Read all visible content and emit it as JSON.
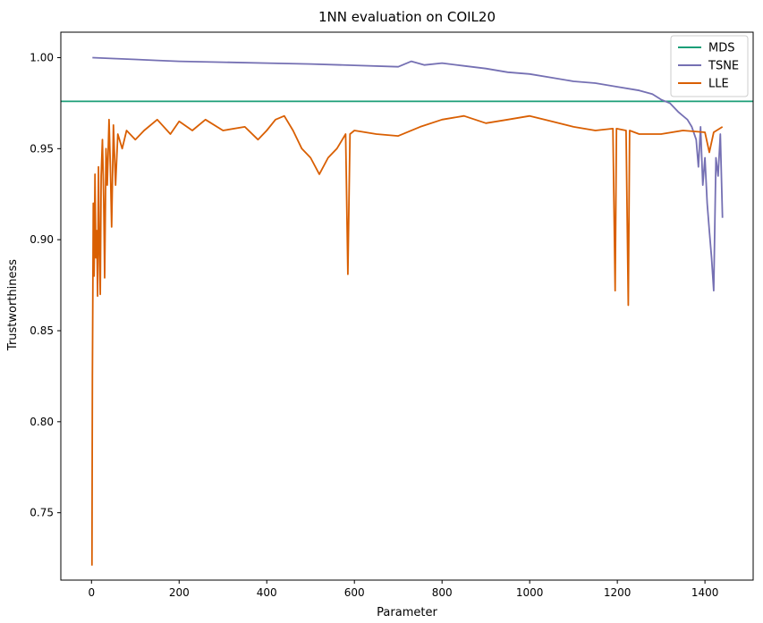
{
  "chart_data": {
    "type": "line",
    "title": "1NN evaluation on COIL20",
    "xlabel": "Parameter",
    "ylabel": "Trustworthiness",
    "xlim": [
      -70,
      1510
    ],
    "ylim": [
      0.713,
      1.014
    ],
    "x_ticks": [
      0,
      200,
      400,
      600,
      800,
      1000,
      1200,
      1400
    ],
    "y_ticks": [
      0.75,
      0.8,
      0.85,
      0.9,
      0.95,
      1.0
    ],
    "x_tick_labels": [
      "0",
      "200",
      "400",
      "600",
      "800",
      "1000",
      "1200",
      "1400"
    ],
    "y_tick_labels": [
      "0.75",
      "0.80",
      "0.85",
      "0.90",
      "0.95",
      "1.00"
    ],
    "grid": false,
    "legend_position": "top-right",
    "series": [
      {
        "name": "MDS",
        "color": "#1b9e77",
        "kind": "hline",
        "value": 0.976
      },
      {
        "name": "TSNE",
        "color": "#7570b3",
        "points": [
          [
            2,
            1.0
          ],
          [
            50,
            0.9995
          ],
          [
            100,
            0.999
          ],
          [
            150,
            0.9985
          ],
          [
            200,
            0.998
          ],
          [
            300,
            0.9975
          ],
          [
            400,
            0.997
          ],
          [
            500,
            0.9965
          ],
          [
            600,
            0.9958
          ],
          [
            700,
            0.995
          ],
          [
            730,
            0.998
          ],
          [
            760,
            0.996
          ],
          [
            800,
            0.997
          ],
          [
            850,
            0.9955
          ],
          [
            900,
            0.994
          ],
          [
            950,
            0.992
          ],
          [
            1000,
            0.991
          ],
          [
            1050,
            0.989
          ],
          [
            1100,
            0.987
          ],
          [
            1150,
            0.986
          ],
          [
            1200,
            0.984
          ],
          [
            1250,
            0.982
          ],
          [
            1280,
            0.98
          ],
          [
            1300,
            0.977
          ],
          [
            1320,
            0.975
          ],
          [
            1340,
            0.97
          ],
          [
            1360,
            0.966
          ],
          [
            1370,
            0.962
          ],
          [
            1380,
            0.955
          ],
          [
            1385,
            0.94
          ],
          [
            1390,
            0.962
          ],
          [
            1395,
            0.93
          ],
          [
            1400,
            0.945
          ],
          [
            1405,
            0.92
          ],
          [
            1410,
            0.905
          ],
          [
            1415,
            0.89
          ],
          [
            1420,
            0.872
          ],
          [
            1425,
            0.945
          ],
          [
            1430,
            0.935
          ],
          [
            1435,
            0.958
          ],
          [
            1440,
            0.912
          ]
        ]
      },
      {
        "name": "LLE",
        "color": "#d95f02",
        "points": [
          [
            1,
            0.721
          ],
          [
            2,
            0.825
          ],
          [
            4,
            0.92
          ],
          [
            6,
            0.88
          ],
          [
            8,
            0.936
          ],
          [
            10,
            0.89
          ],
          [
            12,
            0.905
          ],
          [
            14,
            0.869
          ],
          [
            16,
            0.94
          ],
          [
            18,
            0.895
          ],
          [
            20,
            0.87
          ],
          [
            22,
            0.935
          ],
          [
            25,
            0.955
          ],
          [
            28,
            0.92
          ],
          [
            30,
            0.879
          ],
          [
            33,
            0.95
          ],
          [
            36,
            0.93
          ],
          [
            40,
            0.966
          ],
          [
            43,
            0.94
          ],
          [
            46,
            0.907
          ],
          [
            50,
            0.963
          ],
          [
            55,
            0.93
          ],
          [
            60,
            0.958
          ],
          [
            70,
            0.95
          ],
          [
            80,
            0.96
          ],
          [
            100,
            0.955
          ],
          [
            120,
            0.96
          ],
          [
            150,
            0.966
          ],
          [
            180,
            0.958
          ],
          [
            200,
            0.965
          ],
          [
            230,
            0.96
          ],
          [
            260,
            0.966
          ],
          [
            300,
            0.96
          ],
          [
            350,
            0.962
          ],
          [
            380,
            0.955
          ],
          [
            400,
            0.96
          ],
          [
            420,
            0.966
          ],
          [
            440,
            0.968
          ],
          [
            460,
            0.96
          ],
          [
            480,
            0.95
          ],
          [
            500,
            0.945
          ],
          [
            520,
            0.936
          ],
          [
            540,
            0.945
          ],
          [
            560,
            0.95
          ],
          [
            580,
            0.958
          ],
          [
            585,
            0.881
          ],
          [
            590,
            0.958
          ],
          [
            600,
            0.96
          ],
          [
            650,
            0.958
          ],
          [
            700,
            0.957
          ],
          [
            750,
            0.962
          ],
          [
            800,
            0.966
          ],
          [
            850,
            0.968
          ],
          [
            900,
            0.964
          ],
          [
            950,
            0.966
          ],
          [
            1000,
            0.968
          ],
          [
            1050,
            0.965
          ],
          [
            1100,
            0.962
          ],
          [
            1150,
            0.96
          ],
          [
            1190,
            0.961
          ],
          [
            1195,
            0.872
          ],
          [
            1198,
            0.961
          ],
          [
            1220,
            0.96
          ],
          [
            1225,
            0.864
          ],
          [
            1228,
            0.96
          ],
          [
            1250,
            0.958
          ],
          [
            1300,
            0.958
          ],
          [
            1350,
            0.96
          ],
          [
            1400,
            0.959
          ],
          [
            1410,
            0.948
          ],
          [
            1420,
            0.959
          ],
          [
            1440,
            0.962
          ]
        ]
      }
    ]
  }
}
